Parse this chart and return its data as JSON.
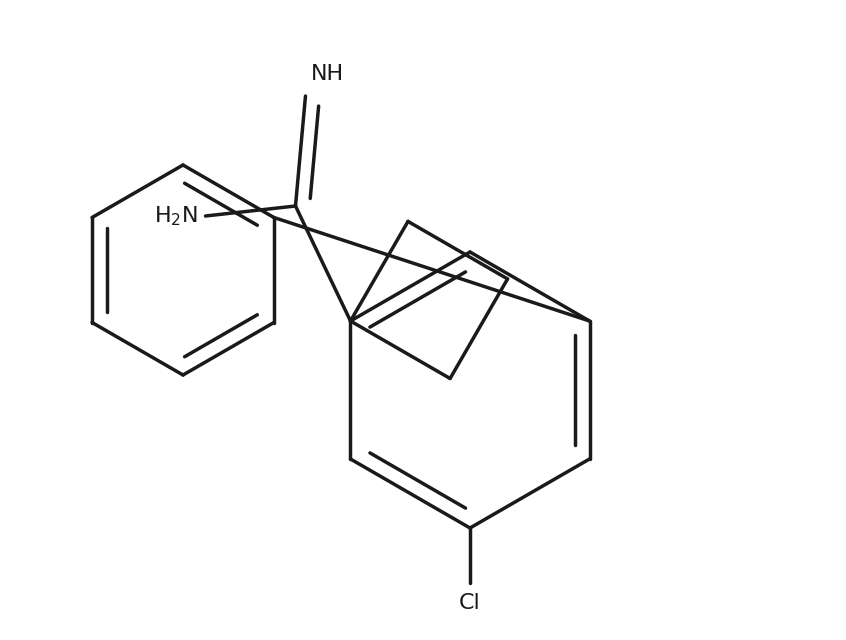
{
  "background_color": "#ffffff",
  "line_color": "#1a1a1a",
  "line_width": 2.5,
  "dbo": 0.018,
  "figsize": [
    8.46,
    6.4
  ],
  "dpi": 100,
  "nh_label": "NH",
  "nh2_label": "H₂N",
  "cl_label": "Cl",
  "font_size": 16
}
